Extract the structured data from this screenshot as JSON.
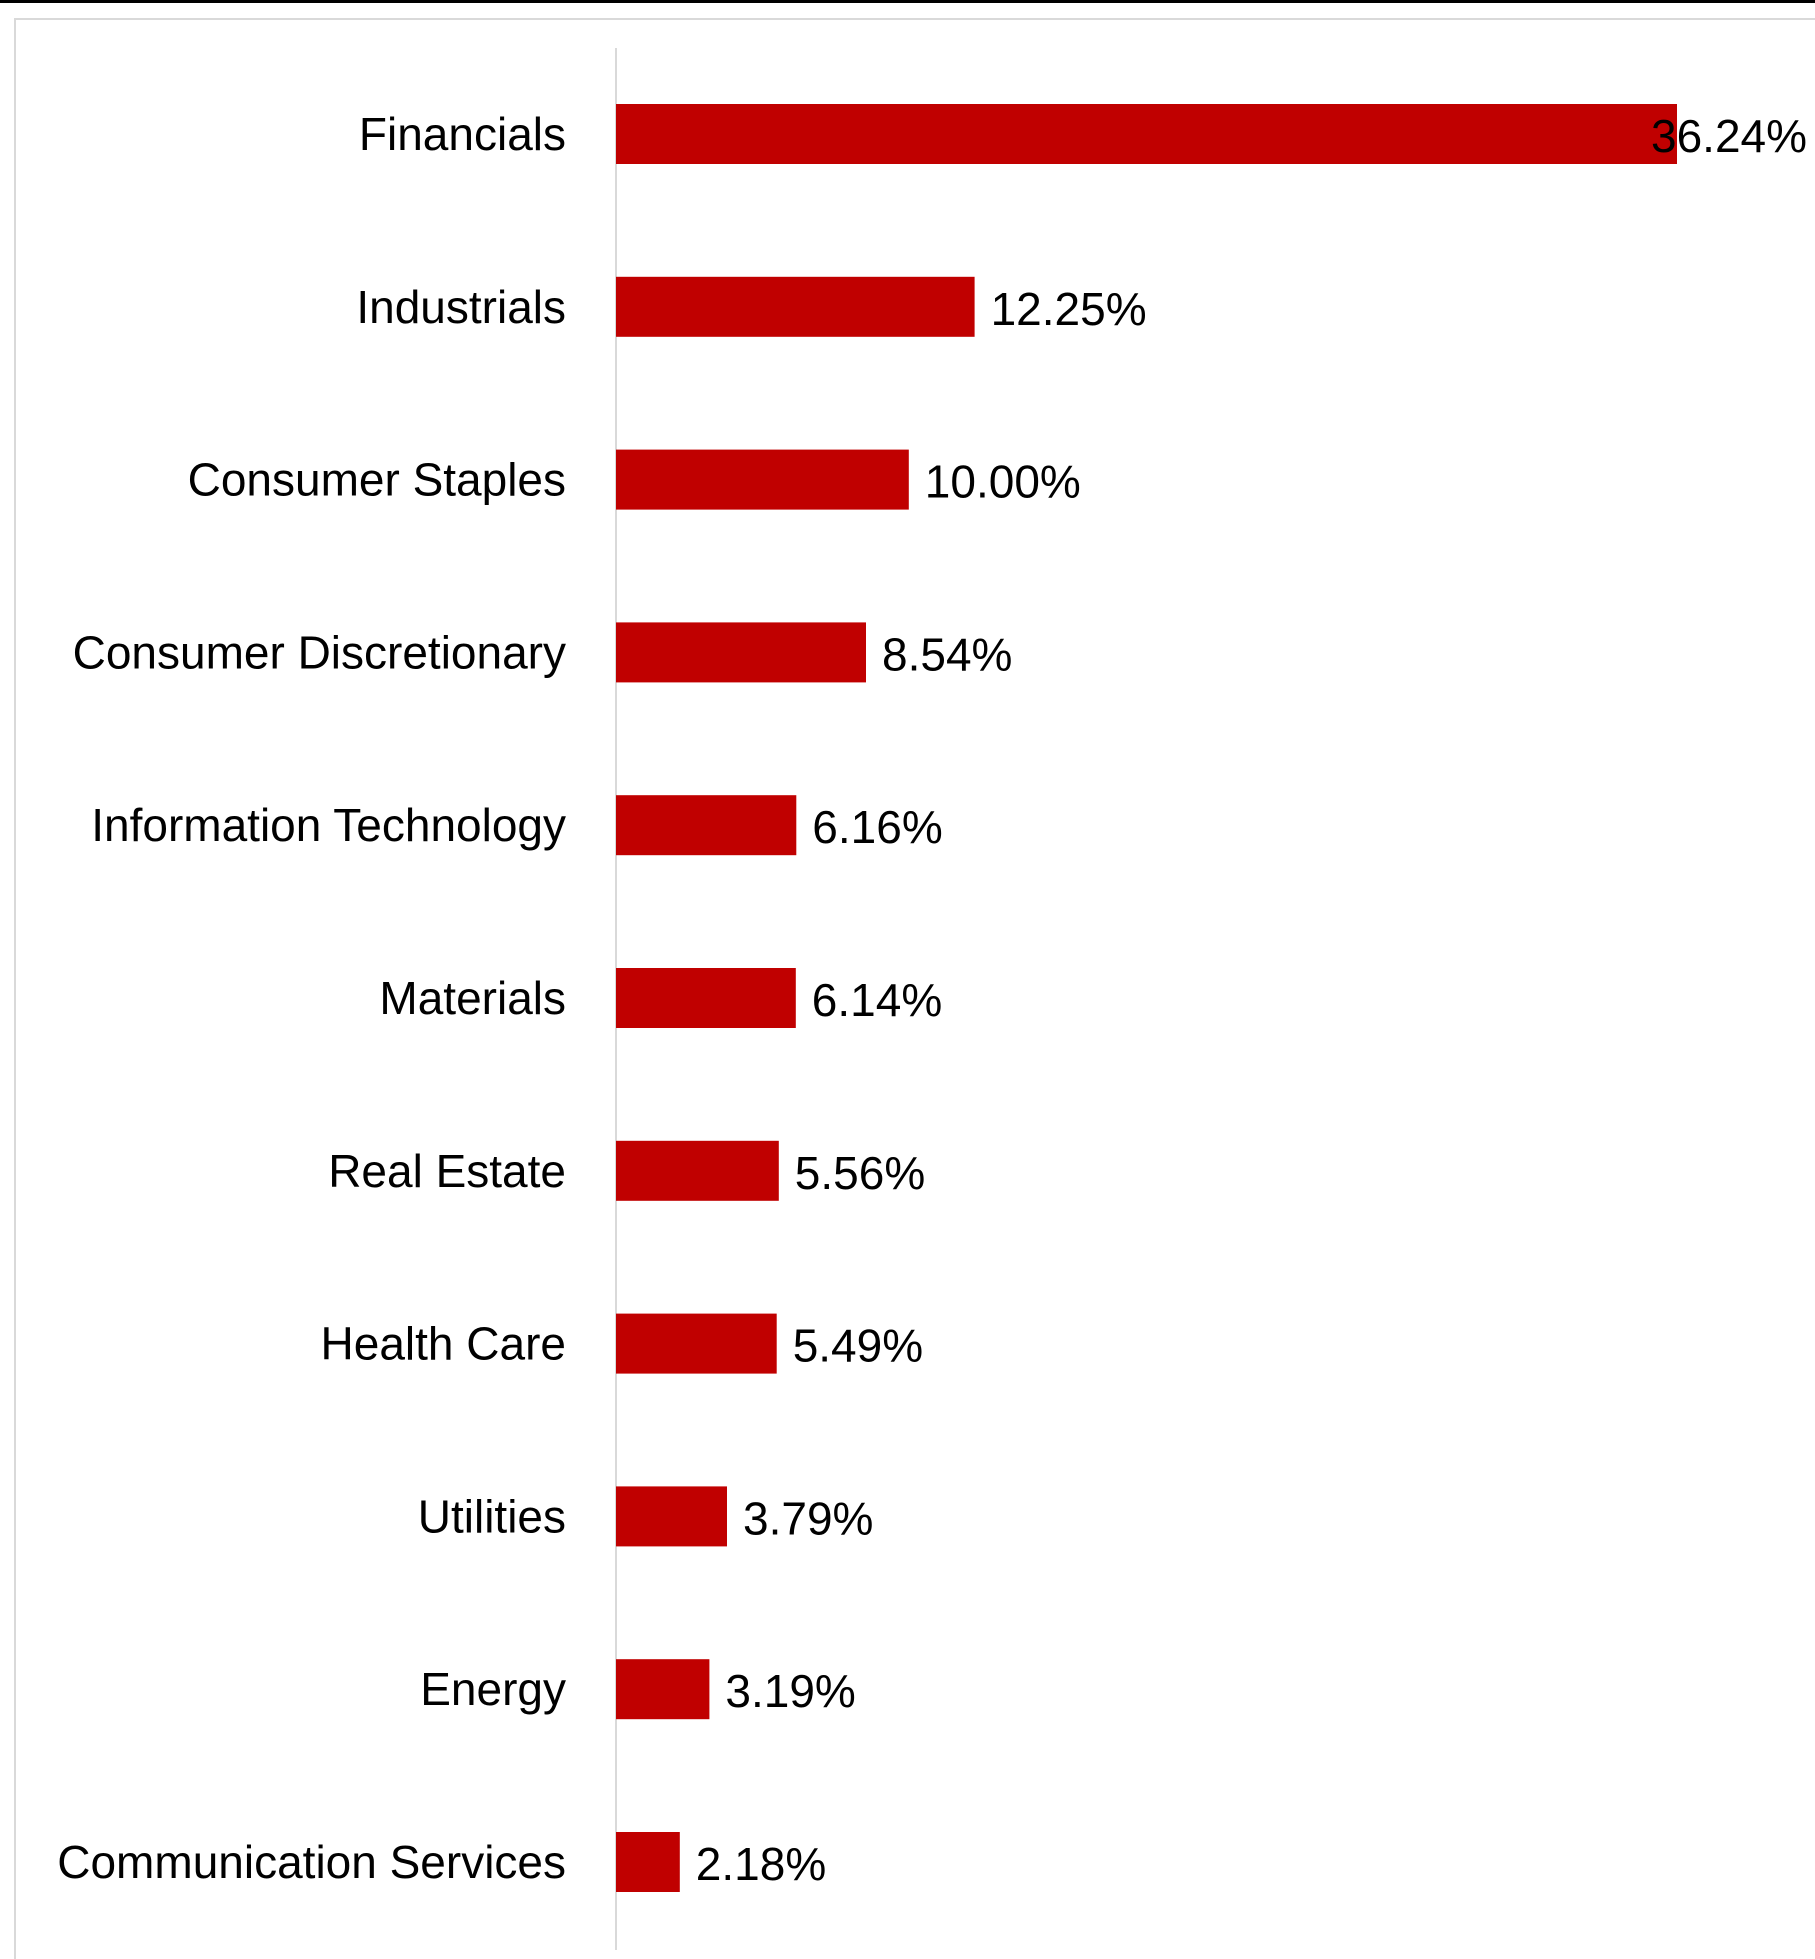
{
  "chart_data": {
    "type": "bar",
    "orientation": "horizontal",
    "title": "",
    "xlabel": "",
    "ylabel": "",
    "categories": [
      "Financials",
      "Industrials",
      "Consumer Staples",
      "Consumer Discretionary",
      "Information Technology",
      "Materials",
      "Real Estate",
      "Health Care",
      "Utilities",
      "Energy",
      "Communication Services"
    ],
    "values": [
      36.24,
      12.25,
      10.0,
      8.54,
      6.16,
      6.14,
      5.56,
      5.49,
      3.79,
      3.19,
      2.18
    ],
    "value_labels": [
      "36.24%",
      "12.25%",
      "10.00%",
      "8.54%",
      "6.16%",
      "6.14%",
      "5.56%",
      "5.49%",
      "3.79%",
      "3.19%",
      "2.18%"
    ],
    "bar_color": "#C00000",
    "axis_color": "#d9d9d9",
    "xlim": [
      0,
      36.24
    ],
    "grid": false,
    "legend": "none"
  }
}
